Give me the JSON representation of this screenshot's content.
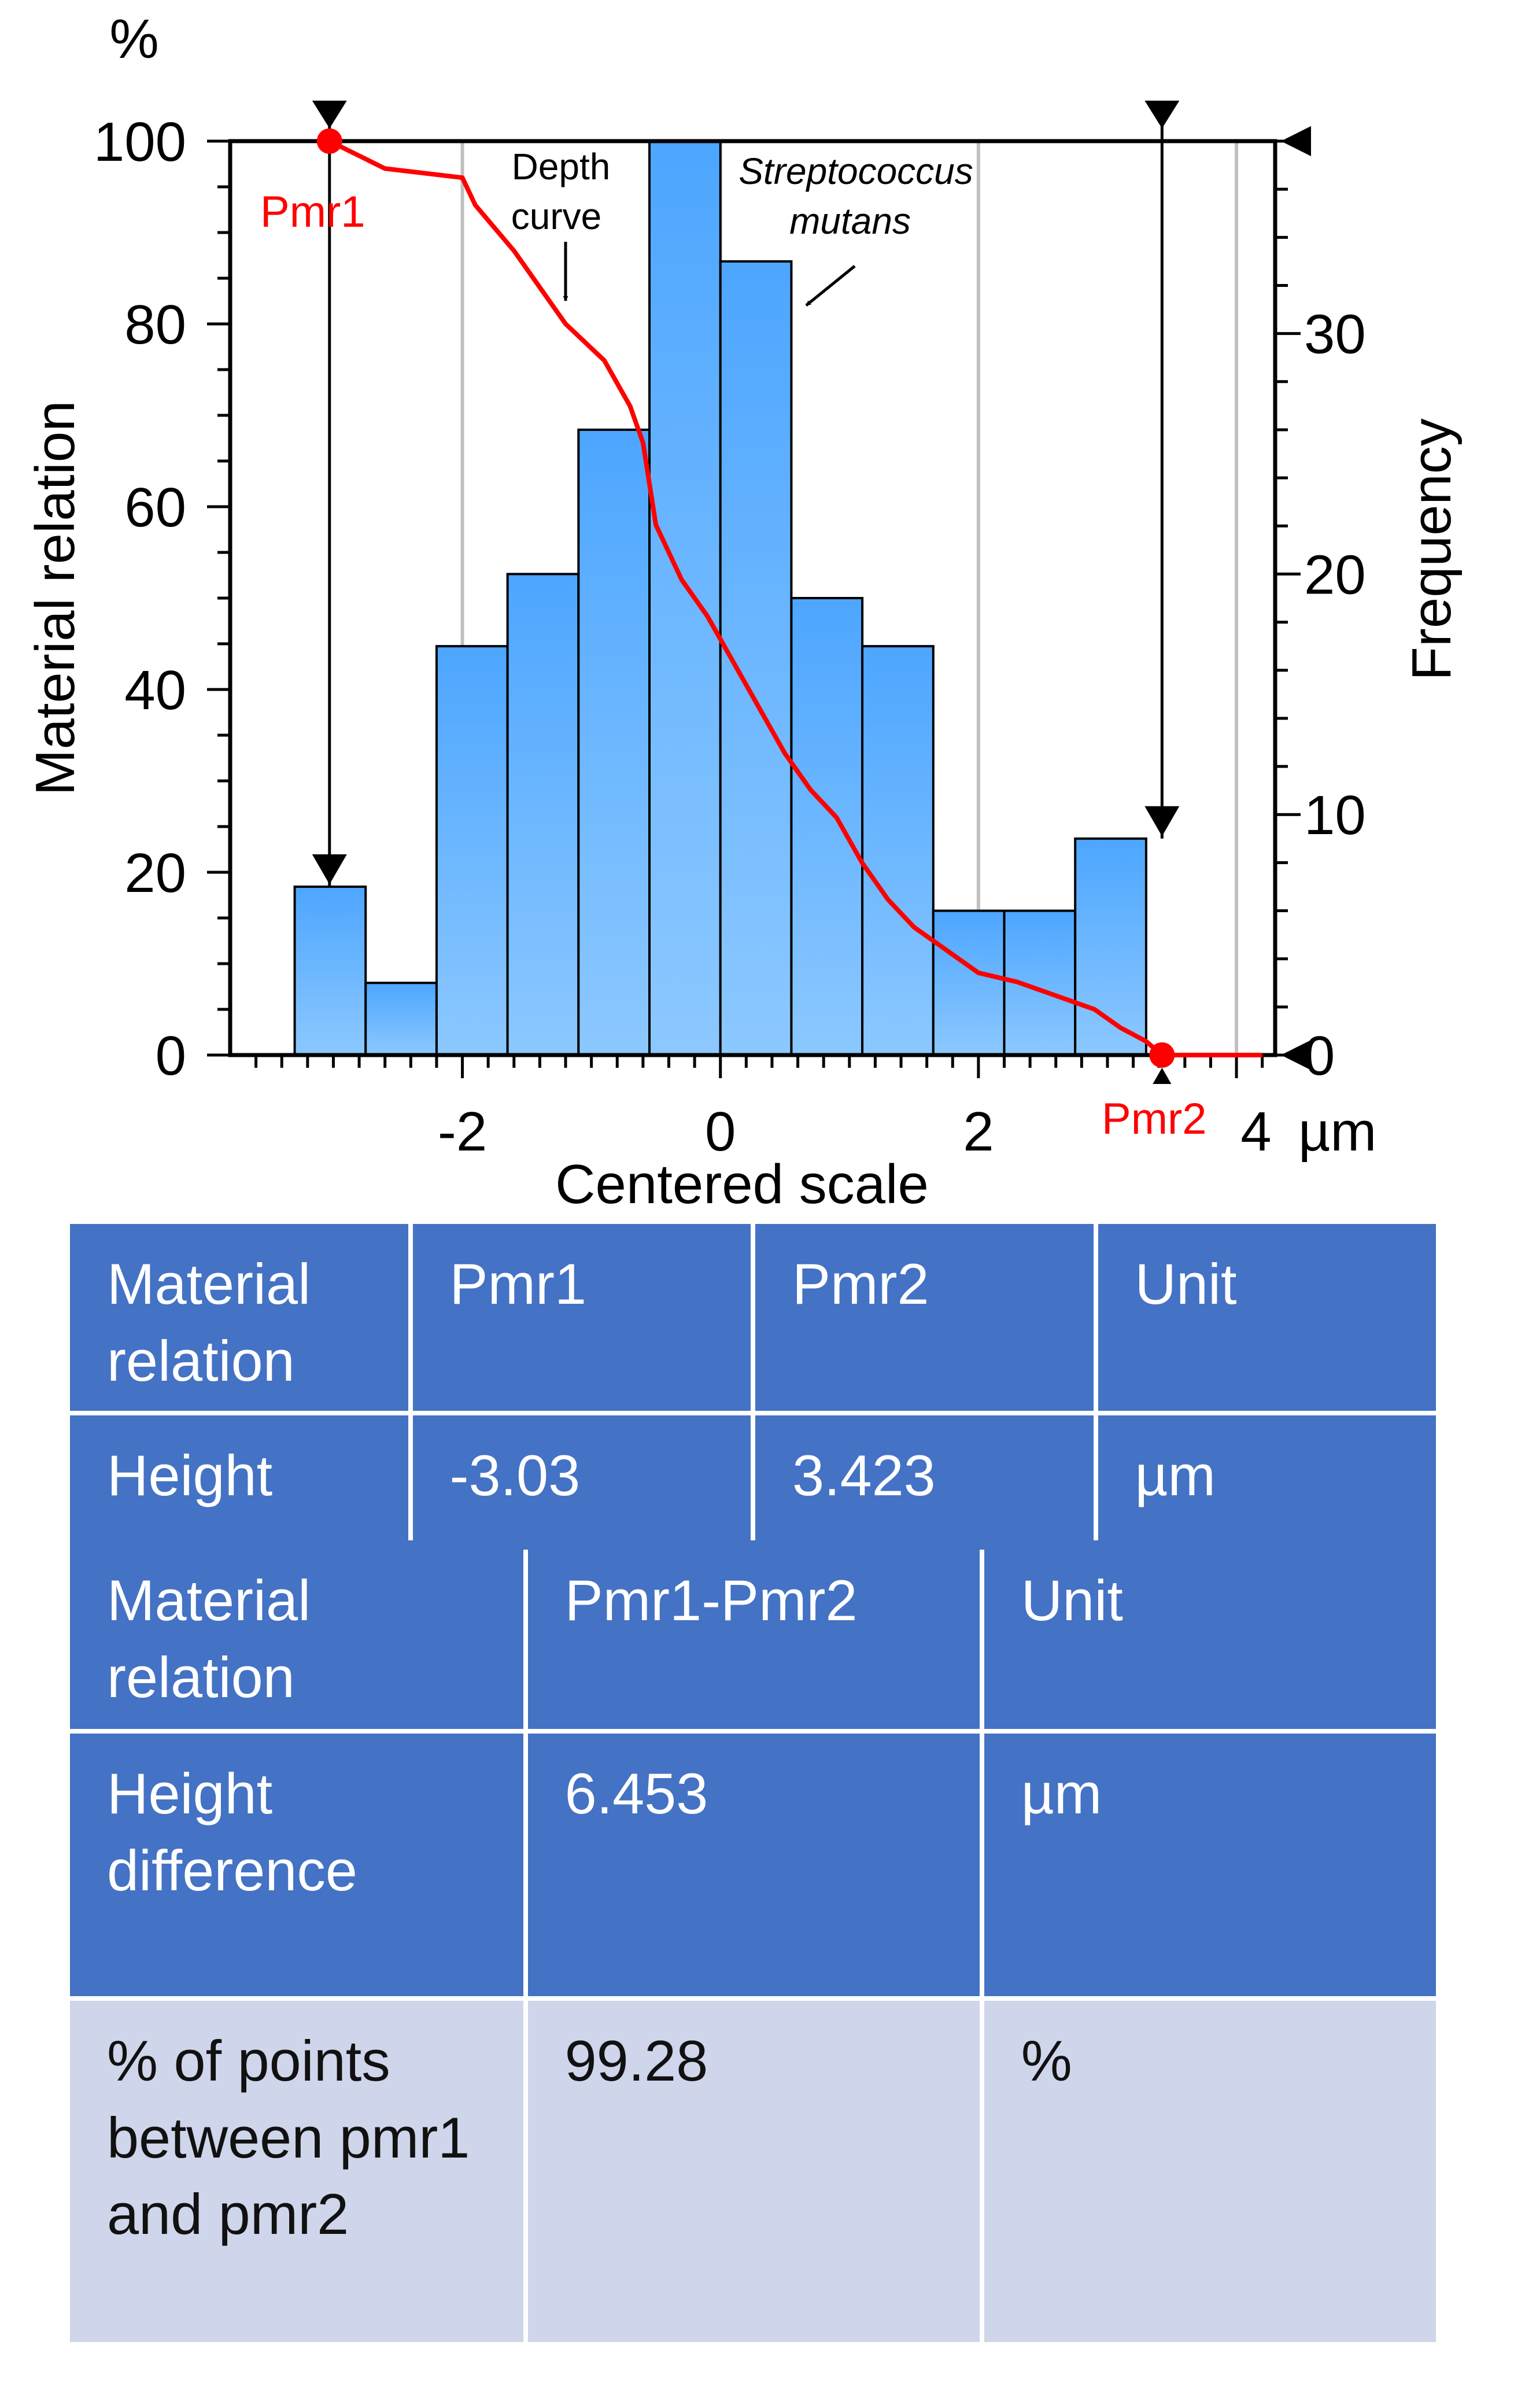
{
  "chart_data": {
    "type": "bar",
    "xlabel": "Centered scale",
    "x_unit": "µm",
    "ylabel_left": "Material relation",
    "y_unit_left": "%",
    "ylabel_right": "Frequency",
    "xlim": [
      -3.8,
      4.3
    ],
    "ylim_left": [
      0,
      100
    ],
    "ylim_right": [
      0,
      38
    ],
    "x_ticks": [
      "-2",
      "0",
      "2"
    ],
    "x_tick_values": [
      -2,
      0,
      2
    ],
    "x_end_label": "4",
    "y_ticks_left": [
      "0",
      "20",
      "40",
      "60",
      "80",
      "100"
    ],
    "y_tick_values_left": [
      0,
      20,
      40,
      60,
      80,
      100
    ],
    "y_ticks_right": [
      "0",
      "10",
      "20",
      "30"
    ],
    "y_tick_values_right": [
      0,
      10,
      20,
      30
    ],
    "histogram": {
      "name": "Streptococcus mutans",
      "bin_edges": [
        -3.3,
        -2.75,
        -2.2,
        -1.65,
        -1.1,
        -0.55,
        0.0,
        0.55,
        1.1,
        1.65,
        2.2,
        2.75,
        3.3
      ],
      "frequency": [
        7,
        3,
        17,
        20,
        26,
        38,
        33,
        19,
        17,
        6,
        6,
        9
      ]
    },
    "depth_curve": {
      "name": "Depth curve",
      "x": [
        -3.03,
        -2.6,
        -2.0,
        -1.9,
        -1.6,
        -1.4,
        -1.2,
        -0.9,
        -0.7,
        -0.6,
        -0.5,
        -0.3,
        -0.1,
        0.1,
        0.3,
        0.5,
        0.7,
        0.9,
        1.1,
        1.3,
        1.5,
        1.7,
        2.0,
        2.3,
        2.5,
        2.7,
        2.9,
        3.1,
        3.3,
        3.423,
        4.2
      ],
      "y": [
        100,
        97,
        96,
        93,
        88,
        84,
        80,
        76,
        71,
        67,
        58,
        52,
        48,
        43,
        38,
        33,
        29,
        26,
        21,
        17,
        14,
        12,
        9,
        8,
        7,
        6,
        5,
        3,
        1.5,
        0,
        0
      ]
    },
    "markers": [
      {
        "label": "Pmr1",
        "x": -3.03,
        "y": 100
      },
      {
        "label": "Pmr2",
        "x": 3.423,
        "y": 0
      }
    ],
    "vertical_grid_x": [
      -2,
      0,
      2,
      4
    ],
    "annotations": {
      "depth_curve_line1": "Depth",
      "depth_curve_line2": "curve",
      "species_line1": "Streptococcus",
      "species_line2": "mutans"
    },
    "colors": {
      "bar_top": "#4da6ff",
      "bar_bottom": "#8cc8ff",
      "curve": "#ff0000",
      "marker_label": "#ff0000"
    }
  },
  "table1": {
    "header": [
      "Material relation",
      "Pmr1",
      "Pmr2",
      "Unit"
    ],
    "row": [
      "Height",
      "-3.03",
      "3.423",
      "µm"
    ]
  },
  "table2": {
    "header": [
      "Material relation",
      "Pmr1-Pmr2",
      "Unit"
    ],
    "row1": [
      "Height difference",
      "6.453",
      "µm"
    ],
    "row2": [
      "% of points between pmr1 and pmr2",
      "99.28",
      "%"
    ]
  },
  "colors": {
    "table_dark": "#4472c4",
    "table_light": "#cfd5ea"
  }
}
